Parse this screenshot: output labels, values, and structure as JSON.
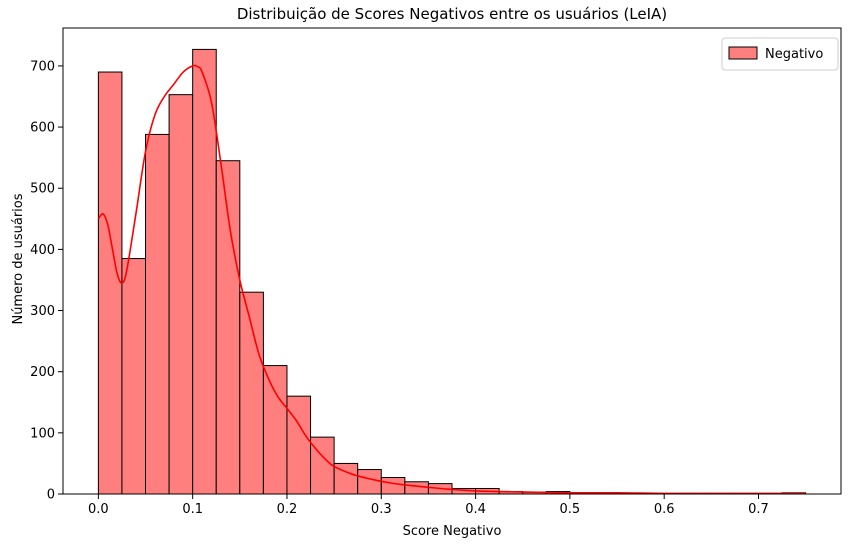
{
  "chart_data": {
    "type": "bar",
    "title": "Distribuição de Scores Negativos entre os usuários (LeIA)",
    "xlabel": "Score Negativo",
    "ylabel": "Número de usuários",
    "xlim": [
      -0.0375,
      0.7875
    ],
    "ylim": [
      0,
      762
    ],
    "xticks": [
      0.0,
      0.1,
      0.2,
      0.3,
      0.4,
      0.5,
      0.6,
      0.7
    ],
    "xtick_labels": [
      "0.0",
      "0.1",
      "0.2",
      "0.3",
      "0.4",
      "0.5",
      "0.6",
      "0.7"
    ],
    "yticks": [
      0,
      100,
      200,
      300,
      400,
      500,
      600,
      700
    ],
    "ytick_labels": [
      "0",
      "100",
      "200",
      "300",
      "400",
      "500",
      "600",
      "700"
    ],
    "grid": false,
    "legend_position": "top-right",
    "bin_edges": [
      0.0,
      0.025,
      0.05,
      0.075,
      0.1,
      0.125,
      0.15,
      0.175,
      0.2,
      0.225,
      0.25,
      0.275,
      0.3,
      0.325,
      0.35,
      0.375,
      0.4,
      0.425,
      0.45,
      0.475,
      0.5,
      0.525,
      0.55,
      0.575,
      0.6,
      0.625,
      0.65,
      0.675,
      0.7,
      0.725,
      0.75
    ],
    "series": [
      {
        "name": "Negativo",
        "color": "#ff7f7f",
        "edge_color": "#000000",
        "values": [
          690,
          385,
          588,
          653,
          727,
          545,
          330,
          210,
          160,
          93,
          50,
          40,
          27,
          20,
          17,
          9,
          9,
          4,
          3,
          4,
          2,
          2,
          1,
          1,
          1,
          1,
          1,
          1,
          1,
          2
        ]
      }
    ],
    "kde": {
      "color": "#ff0000",
      "x": [
        0.0,
        0.005,
        0.01,
        0.015,
        0.02,
        0.025,
        0.03,
        0.04,
        0.05,
        0.06,
        0.07,
        0.08,
        0.09,
        0.1,
        0.105,
        0.11,
        0.12,
        0.13,
        0.14,
        0.15,
        0.16,
        0.17,
        0.18,
        0.19,
        0.2,
        0.21,
        0.22,
        0.23,
        0.24,
        0.25,
        0.27,
        0.29,
        0.31,
        0.33,
        0.35,
        0.37,
        0.4,
        0.43,
        0.46,
        0.5,
        0.55,
        0.6,
        0.65,
        0.7,
        0.75
      ],
      "y": [
        450,
        458,
        440,
        400,
        360,
        345,
        365,
        460,
        560,
        620,
        650,
        670,
        690,
        700,
        699,
        690,
        640,
        540,
        430,
        350,
        290,
        230,
        190,
        160,
        140,
        120,
        95,
        75,
        58,
        45,
        32,
        24,
        18,
        14,
        11,
        8,
        5,
        4,
        3,
        2,
        2,
        1,
        1,
        1,
        1
      ]
    }
  }
}
